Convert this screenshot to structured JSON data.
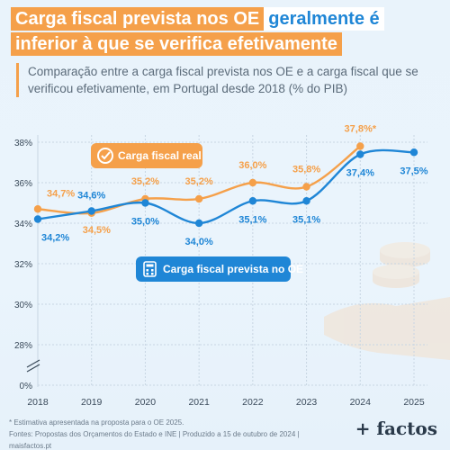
{
  "title": {
    "part1": "Carga fiscal prevista nos OE",
    "part2": "geralmente é",
    "part3": "inferior à que se verifica efetivamente"
  },
  "subtitle": "Comparação entre a carga fiscal prevista nos OE e a carga fiscal que se verificou efetivamente, em Portugal desde 2018 (% do PIB)",
  "chart_data": {
    "type": "line",
    "x": [
      "2018",
      "2019",
      "2020",
      "2021",
      "2022",
      "2023",
      "2024",
      "2025"
    ],
    "y_ticks": [
      "0%",
      "28%",
      "30%",
      "32%",
      "34%",
      "36%",
      "38%"
    ],
    "ylim": [
      28,
      38
    ],
    "axis_break": true,
    "grid": true,
    "series": [
      {
        "name": "Carga fiscal real",
        "color": "#f5a04a",
        "values": [
          34.7,
          34.5,
          35.2,
          35.2,
          36.0,
          35.8,
          37.8,
          null
        ],
        "labels": [
          "34,7%",
          "34,5%",
          "35,2%",
          "35,2%",
          "36,0%",
          "35,8%",
          "37,8%*",
          ""
        ]
      },
      {
        "name": "Carga fiscal prevista no OE",
        "color": "#1f86d6",
        "values": [
          34.2,
          34.6,
          35.0,
          34.0,
          35.1,
          35.1,
          37.4,
          37.5
        ],
        "labels": [
          "34,2%",
          "34,6%",
          "35,0%",
          "34,0%",
          "35,1%",
          "35,1%",
          "37,4%",
          "37,5%"
        ]
      }
    ]
  },
  "footer": {
    "note": "* Estimativa apresentada na proposta para o OE 2025.",
    "sources": "Fontes: Propostas dos Orçamentos do Estado e INE | Produzido a 15 de outubro de 2024 | maisfactos.pt"
  },
  "brand": "+ factos"
}
